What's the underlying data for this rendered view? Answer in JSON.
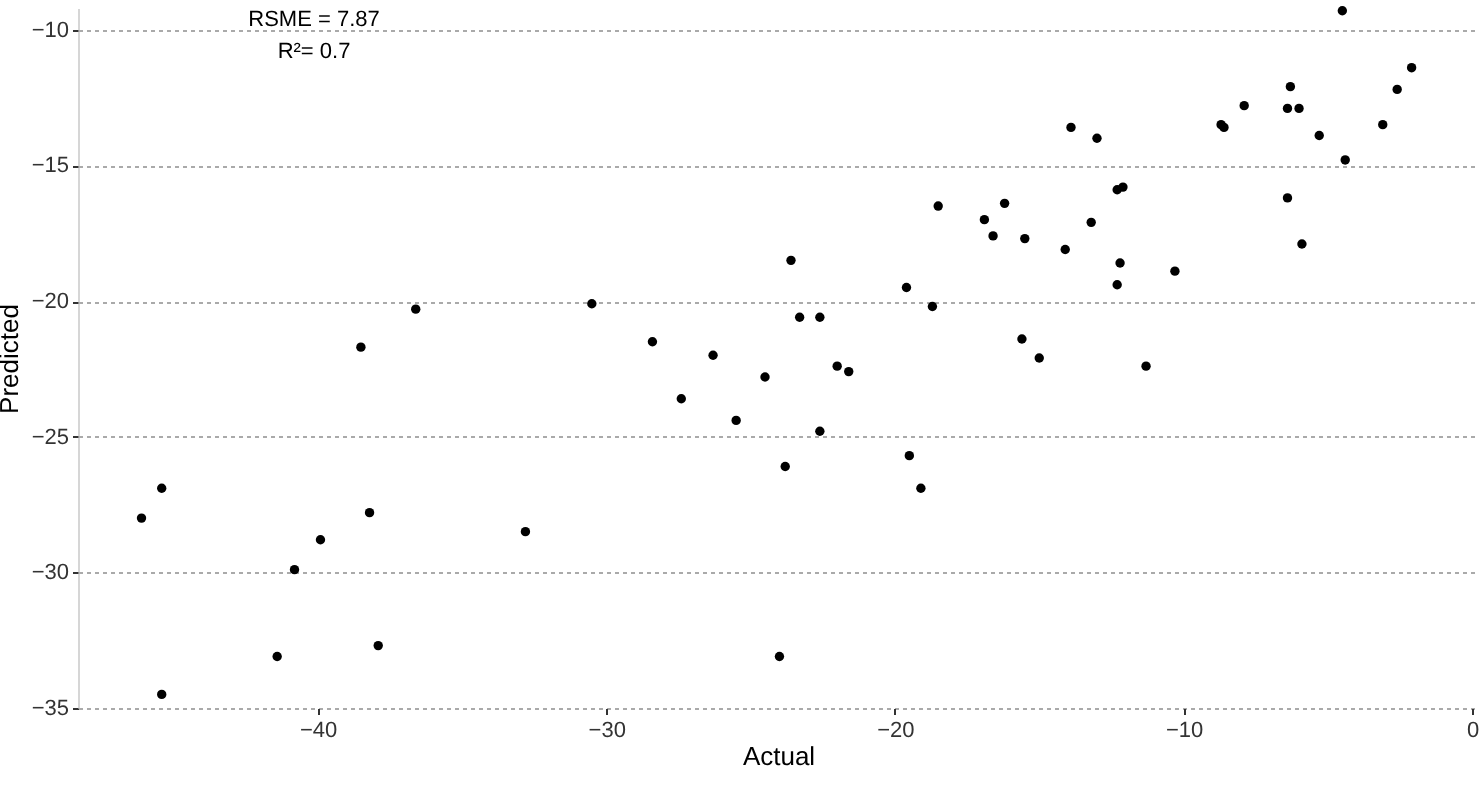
{
  "chart_data": {
    "type": "scatter",
    "xlabel": "Actual",
    "ylabel": "Predicted",
    "annotations": [
      "RSME = 7.87",
      "R²= 0.7"
    ],
    "x": [
      -46.1,
      -45.4,
      -45.4,
      -40.8,
      -39.9,
      -38.2,
      -41.4,
      -37.9,
      -32.8,
      -27.4,
      -25.5,
      -38.5,
      -36.6,
      -30.5,
      -28.4,
      -26.3,
      -4.5,
      -2.1,
      -2.6,
      -6.3,
      -7.9,
      -6.4,
      -6.0,
      -8.7,
      -8.6,
      -3.1,
      -5.3,
      -13.9,
      -13.0,
      -4.4,
      -12.1,
      -12.3,
      -6.4,
      -18.5,
      -16.2,
      -16.9,
      -16.6,
      -15.5,
      -5.9,
      -13.2,
      -14.1,
      -23.6,
      -12.2,
      -10.3,
      -19.6,
      -12.3,
      -18.7,
      -23.3,
      -22.6,
      -15.6,
      -15.0,
      -22.0,
      -21.6,
      -11.3,
      -24.5,
      -22.6,
      -23.8,
      -19.5,
      -19.1,
      -24.0
    ],
    "series": [
      {
        "color": "#000000",
        "values": [
          -28.0,
          -26.9,
          -34.5,
          -29.9,
          -28.8,
          -27.8,
          -33.1,
          -32.7,
          -28.5,
          -23.6,
          -24.4,
          -21.7,
          -20.3,
          -20.1,
          -21.5,
          -22.0,
          -9.3,
          -11.4,
          -12.2,
          -12.1,
          -12.8,
          -12.9,
          -12.9,
          -13.5,
          -13.6,
          -13.5,
          -13.9,
          -13.6,
          -14.0,
          -14.8,
          -15.8,
          -15.9,
          -16.2,
          -16.5,
          -16.4,
          -17.0,
          -17.6,
          -17.7,
          -17.9,
          -17.1,
          -18.1,
          -18.5,
          -18.6,
          -18.9,
          -19.5,
          -19.4,
          -20.2,
          -20.6,
          -20.6,
          -21.4,
          -22.1,
          -22.4,
          -22.6,
          -22.4,
          -22.8,
          -24.8,
          -26.1,
          -25.7,
          -26.9,
          -33.1
        ]
      }
    ],
    "xlim": [
      -48.3,
      0.2
    ],
    "ylim": [
      -35,
      -9.2
    ],
    "xticks": [
      -40,
      -30,
      -20,
      -10,
      0
    ],
    "yticks": [
      -35,
      -30,
      -25,
      -20,
      -15,
      -10
    ],
    "grid": "y",
    "marker": "circle"
  }
}
